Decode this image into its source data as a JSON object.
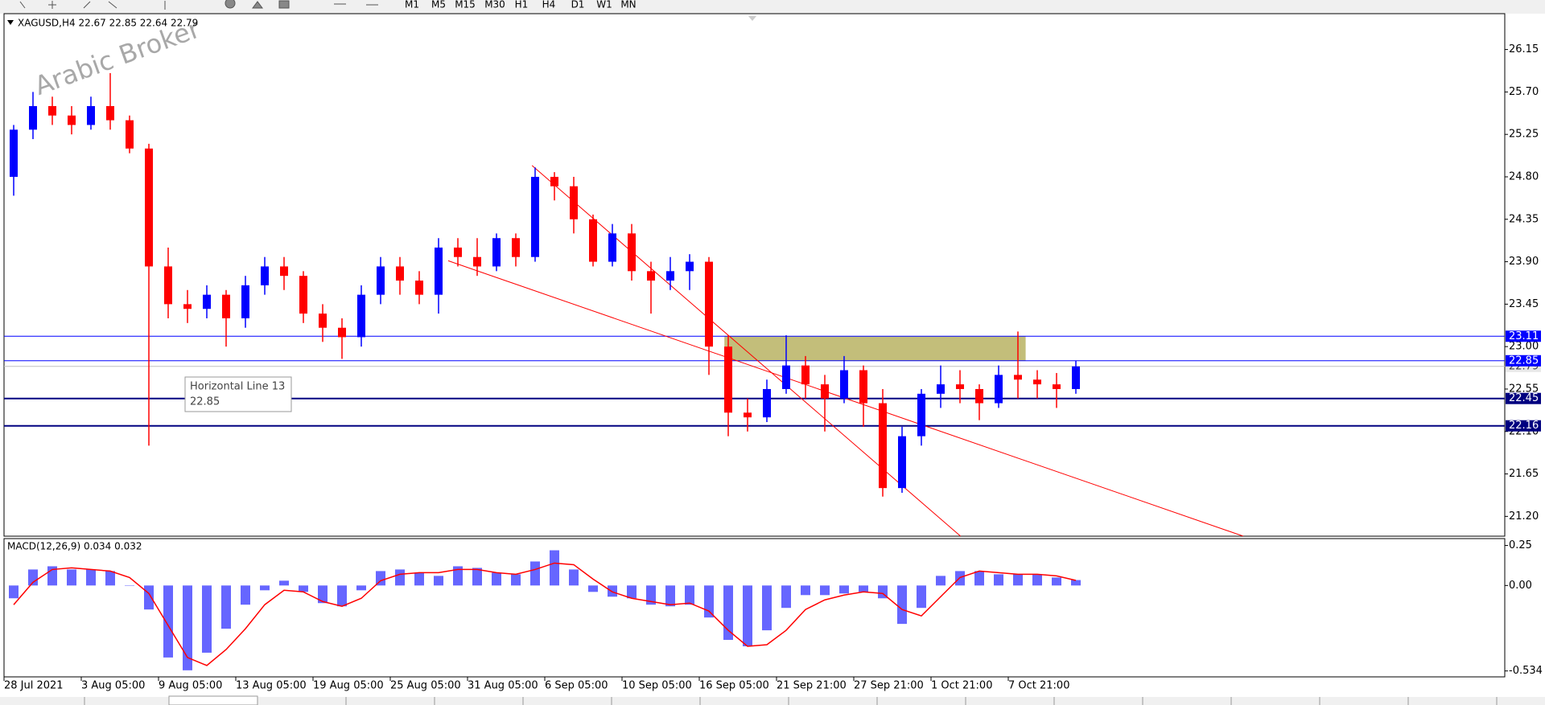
{
  "toolbar": {
    "timeframes": [
      "M1",
      "M5",
      "M15",
      "M30",
      "H1",
      "H4",
      "D1",
      "W1",
      "MN"
    ]
  },
  "watermark": "Arabic Broker",
  "tooltip": {
    "name": "Horizontal Line 13",
    "price": "22.85"
  },
  "chart_data": [
    {
      "type": "candlestick",
      "title": "XAGUSD,H4  22.67 22.85 22.64 22.79",
      "categories": [
        "28 Jul 2021",
        null,
        null,
        null,
        "3 Aug 05:00",
        null,
        null,
        null,
        "9 Aug 05:00",
        null,
        null,
        null,
        "13 Aug 05:00",
        null,
        null,
        null,
        "19 Aug 05:00",
        null,
        null,
        null,
        "25 Aug 05:00",
        null,
        null,
        null,
        "31 Aug 05:00",
        null,
        null,
        null,
        "6 Sep 05:00",
        null,
        null,
        null,
        "10 Sep 05:00",
        null,
        null,
        null,
        "16 Sep 05:00",
        null,
        null,
        null,
        "21 Sep 21:00",
        null,
        null,
        null,
        "27 Sep 21:00",
        null,
        null,
        null,
        "1 Oct 21:00",
        null,
        null,
        null,
        "7 Oct 21:00",
        null,
        null,
        null
      ],
      "open": [
        24.8,
        25.3,
        25.55,
        25.45,
        25.35,
        25.55,
        25.4,
        25.1,
        23.85,
        23.45,
        23.4,
        23.55,
        23.3,
        23.65,
        23.85,
        23.75,
        23.35,
        23.2,
        23.1,
        23.55,
        23.85,
        23.7,
        23.55,
        24.05,
        23.95,
        23.85,
        24.15,
        23.95,
        24.8,
        24.7,
        24.35,
        23.9,
        24.2,
        23.8,
        23.7,
        23.8,
        23.9,
        23.0,
        22.3,
        22.25,
        22.55,
        22.8,
        22.6,
        22.45,
        22.75,
        22.4,
        21.5,
        22.05,
        22.5,
        22.6,
        22.55,
        22.4,
        22.7,
        22.65,
        22.6,
        22.55
      ],
      "high": [
        25.35,
        25.7,
        25.65,
        25.55,
        25.65,
        25.9,
        25.45,
        25.15,
        24.05,
        23.6,
        23.65,
        23.6,
        23.75,
        23.95,
        23.95,
        23.8,
        23.45,
        23.3,
        23.65,
        23.95,
        23.95,
        23.8,
        24.15,
        24.15,
        24.15,
        24.2,
        24.2,
        24.9,
        24.85,
        24.8,
        24.4,
        24.3,
        24.3,
        23.9,
        23.95,
        23.98,
        23.95,
        23.12,
        22.45,
        22.65,
        23.12,
        22.9,
        22.7,
        22.9,
        22.8,
        22.55,
        22.15,
        22.55,
        22.8,
        22.75,
        22.6,
        22.8,
        23.16,
        22.75,
        22.72,
        22.85
      ],
      "low": [
        24.6,
        25.2,
        25.35,
        25.25,
        25.3,
        25.3,
        25.05,
        21.95,
        23.3,
        23.25,
        23.3,
        23.0,
        23.2,
        23.55,
        23.6,
        23.25,
        23.05,
        22.87,
        23.0,
        23.45,
        23.55,
        23.45,
        23.35,
        23.85,
        23.75,
        23.8,
        23.85,
        23.9,
        24.55,
        24.2,
        23.85,
        23.85,
        23.7,
        23.35,
        23.6,
        23.6,
        22.7,
        22.05,
        22.1,
        22.2,
        22.5,
        22.45,
        22.1,
        22.4,
        22.15,
        21.41,
        21.45,
        21.95,
        22.35,
        22.4,
        22.22,
        22.35,
        22.45,
        22.45,
        22.35,
        22.5
      ],
      "close": [
        25.3,
        25.55,
        25.45,
        25.35,
        25.55,
        25.4,
        25.1,
        23.85,
        23.45,
        23.4,
        23.55,
        23.3,
        23.65,
        23.85,
        23.75,
        23.35,
        23.2,
        23.1,
        23.55,
        23.85,
        23.7,
        23.55,
        24.05,
        23.95,
        23.85,
        24.15,
        23.95,
        24.8,
        24.7,
        24.35,
        23.9,
        24.2,
        23.8,
        23.7,
        23.8,
        23.9,
        23.0,
        22.3,
        22.25,
        22.55,
        22.8,
        22.6,
        22.45,
        22.75,
        22.4,
        21.5,
        22.05,
        22.5,
        22.6,
        22.55,
        22.4,
        22.7,
        22.65,
        22.6,
        22.55,
        22.79
      ],
      "up_color": "#0000ff",
      "down_color": "#ff0000",
      "ylim": [
        20.99,
        26.53
      ],
      "yticks": [
        26.15,
        {
          "value": 25.7,
          "label": "25.70"
        },
        25.25,
        {
          "value": 24.8,
          "label": "24.80"
        },
        24.35,
        {
          "value": 23.9,
          "label": "23.90"
        },
        23.45,
        {
          "value": 23,
          "label": "23.00"
        },
        22.55,
        {
          "value": 22.1,
          "label": "22.10"
        },
        21.65,
        {
          "value": 21.2,
          "label": "21.20"
        }
      ],
      "hlines": [
        {
          "value": 22.79,
          "color": "#c0c0c0"
        },
        {
          "value": 23.11,
          "color": "#0000ff"
        },
        {
          "value": 22.45,
          "color": "#000080"
        },
        {
          "value": 22.16,
          "color": "#000080"
        },
        {
          "value": 22.85,
          "color": "#0000ff"
        }
      ],
      "zone": {
        "x": [
          36.8,
          52.4
        ],
        "y": [
          22.85,
          23.11
        ],
        "color": "#bdb76b"
      },
      "trendlines": [
        {
          "x": [
            26.84,
            49.03
          ],
          "y": [
            24.92,
            20.99
          ],
          "color": "#ff0000"
        },
        {
          "x": [
            22.5,
            63.67
          ],
          "y": [
            23.91,
            20.99
          ],
          "color": "#ff0000"
        }
      ]
    },
    {
      "type": "macd",
      "title": "MACD(12,26,9) 0.034 0.032",
      "histogram": [
        -0.08,
        0.1,
        0.12,
        0.1,
        0.1,
        0.09,
        0.0,
        -0.15,
        -0.45,
        -0.53,
        -0.42,
        -0.27,
        -0.12,
        -0.03,
        0.03,
        -0.04,
        -0.11,
        -0.13,
        -0.03,
        0.09,
        0.1,
        0.08,
        0.06,
        0.12,
        0.11,
        0.08,
        0.07,
        0.15,
        0.22,
        0.1,
        -0.04,
        -0.07,
        -0.08,
        -0.12,
        -0.13,
        -0.12,
        -0.2,
        -0.34,
        -0.38,
        -0.28,
        -0.14,
        -0.06,
        -0.06,
        -0.05,
        -0.04,
        -0.08,
        -0.24,
        -0.14,
        0.06,
        0.09,
        0.09,
        0.07,
        0.07,
        0.07,
        0.05,
        0.034
      ],
      "signal": [
        -0.12,
        0.02,
        0.1,
        0.11,
        0.1,
        0.09,
        0.05,
        -0.05,
        -0.25,
        -0.45,
        -0.5,
        -0.4,
        -0.27,
        -0.12,
        -0.03,
        -0.04,
        -0.1,
        -0.13,
        -0.08,
        0.03,
        0.07,
        0.08,
        0.08,
        0.1,
        0.1,
        0.08,
        0.07,
        0.1,
        0.14,
        0.13,
        0.04,
        -0.04,
        -0.08,
        -0.1,
        -0.12,
        -0.11,
        -0.16,
        -0.28,
        -0.38,
        -0.37,
        -0.28,
        -0.15,
        -0.09,
        -0.06,
        -0.04,
        -0.05,
        -0.15,
        -0.19,
        -0.07,
        0.05,
        0.09,
        0.08,
        0.07,
        0.07,
        0.06,
        0.032
      ],
      "hist_color": "#3333ff",
      "signal_color": "#ff0000",
      "ylim": [
        -0.571,
        0.293
      ],
      "yticks": [
        0.25,
        {
          "value": 0,
          "label": "0.00"
        },
        -0.534
      ]
    }
  ]
}
